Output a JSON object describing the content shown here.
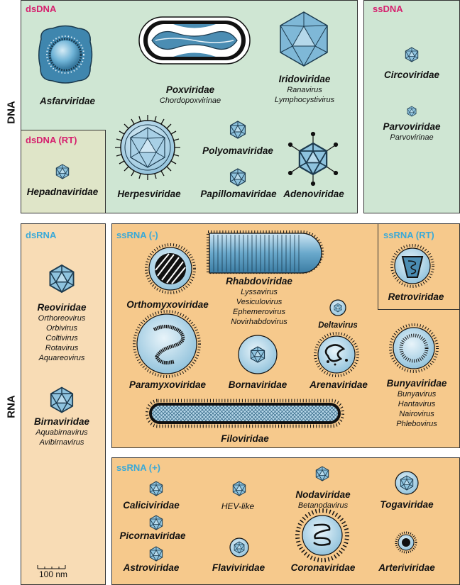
{
  "side_labels": {
    "dna": "DNA",
    "rna": "RNA"
  },
  "colors": {
    "dna_bg": "#cfe6d3",
    "rna_bg": "#f6c98c",
    "dsdna_rt_bg": "#dfe5c8",
    "dsrna_bg": "#f8dcb5",
    "dna_header": "#d6206e",
    "rna_header": "#3aa9d8",
    "virion": "#5ea7cc"
  },
  "groups": {
    "dsdna": "dsDNA",
    "ssdna": "ssDNA",
    "dsdna_rt": "dsDNA (RT)",
    "dsrna": "dsRNA",
    "ssrna_neg": "ssRNA (-)",
    "ssrna_rt": "ssRNA (RT)",
    "ssrna_pos": "ssRNA (+)"
  },
  "families": {
    "asfarviridae": "Asfarviridae",
    "poxviridae": "Poxviridae",
    "poxviridae_sub": [
      "Chordopoxvirinae"
    ],
    "iridoviridae": "Iridoviridae",
    "iridoviridae_sub": [
      "Ranavirus",
      "Lymphocystivirus"
    ],
    "circoviridae": "Circoviridae",
    "parvoviridae": "Parvoviridae",
    "parvoviridae_sub": [
      "Parvovirinae"
    ],
    "hepadnaviridae": "Hepadnaviridae",
    "herpesviridae": "Herpesviridae",
    "polyomaviridae": "Polyomaviridae",
    "papillomaviridae": "Papillomaviridae",
    "adenoviridae": "Adenoviridae",
    "reoviridae": "Reoviridae",
    "reoviridae_sub": [
      "Orthoreovirus",
      "Orbivirus",
      "Coltivirus",
      "Rotavirus",
      "Aquareovirus"
    ],
    "birnaviridae": "Birnaviridae",
    "birnaviridae_sub": [
      "Aquabirnavirus",
      "Avibirnavirus"
    ],
    "orthomyxoviridae": "Orthomyxoviridae",
    "rhabdoviridae": "Rhabdoviridae",
    "rhabdoviridae_sub": [
      "Lyssavirus",
      "Vesiculovirus",
      "Ephemerovirus",
      "Novirhabdovirus"
    ],
    "retroviridae": "Retroviridae",
    "deltavirus": "Deltavirus",
    "paramyxoviridae": "Paramyxoviridae",
    "bornaviridae": "Bornaviridae",
    "arenaviridae": "Arenaviridae",
    "bunyaviridae": "Bunyaviridae",
    "bunyaviridae_sub": [
      "Bunyavirus",
      "Hantavirus",
      "Nairovirus",
      "Phlebovirus"
    ],
    "filoviridae": "Filoviridae",
    "caliciviridae": "Caliciviridae",
    "hev_like": "HEV-like",
    "nodaviridae": "Nodaviridae",
    "nodaviridae_sub": [
      "Betanodavirus"
    ],
    "togaviridae": "Togaviridae",
    "picornaviridae": "Picornaviridae",
    "astroviridae": "Astroviridae",
    "flaviviridae": "Flaviviridae",
    "coronaviridae": "Coronaviridae",
    "arteriviridae": "Arteriviridae"
  },
  "scale_bar": {
    "label": "100 nm"
  }
}
